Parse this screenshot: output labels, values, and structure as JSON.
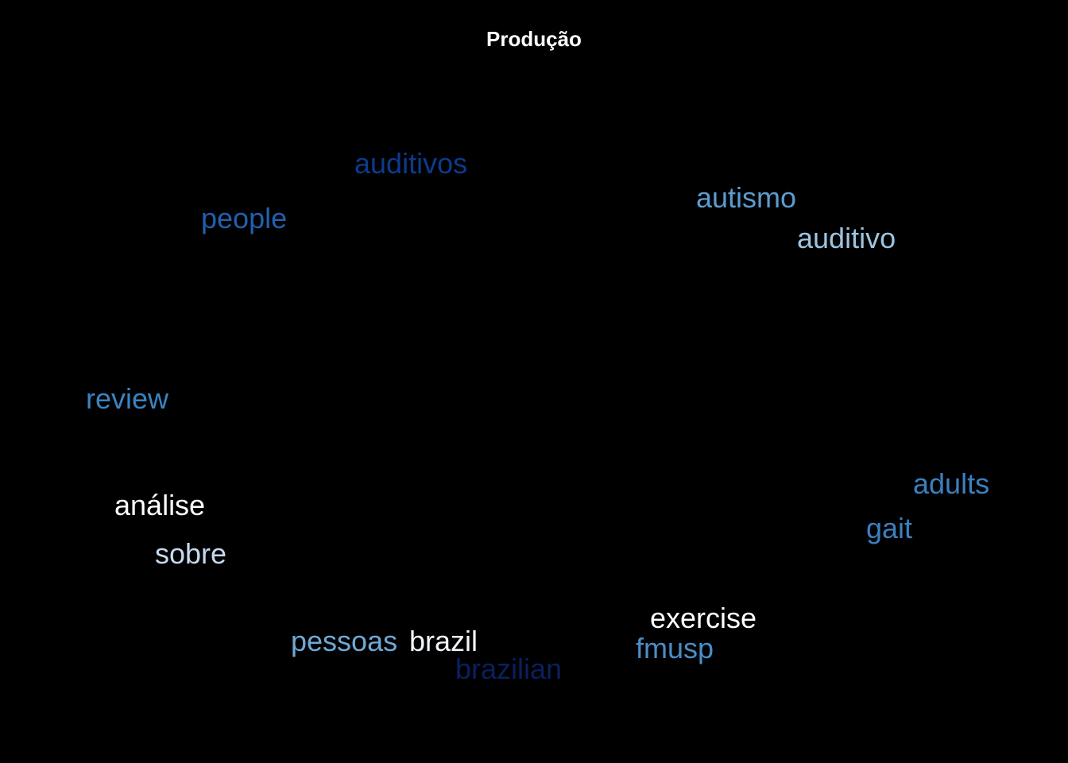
{
  "chart_data": {
    "type": "wordcloud",
    "title": "Produção",
    "background": "#000000",
    "words": [
      {
        "text": "auditivos",
        "color": "#0d3a8c"
      },
      {
        "text": "autismo",
        "color": "#5b9ccf"
      },
      {
        "text": "people",
        "color": "#2060ae"
      },
      {
        "text": "auditivo",
        "color": "#9cc4e2"
      },
      {
        "text": "review",
        "color": "#3b83c1"
      },
      {
        "text": "adults",
        "color": "#3a80c0"
      },
      {
        "text": "análise",
        "color": "#ffffff"
      },
      {
        "text": "gait",
        "color": "#3b7fbf"
      },
      {
        "text": "sobre",
        "color": "#c6d9ee"
      },
      {
        "text": "exercise",
        "color": "#ffffff"
      },
      {
        "text": "pessoas",
        "color": "#6ea9d6"
      },
      {
        "text": "brazil",
        "color": "#f2f6fb"
      },
      {
        "text": "fmusp",
        "color": "#4a8dc8"
      },
      {
        "text": "brazilian",
        "color": "#0b1f5e"
      }
    ]
  }
}
